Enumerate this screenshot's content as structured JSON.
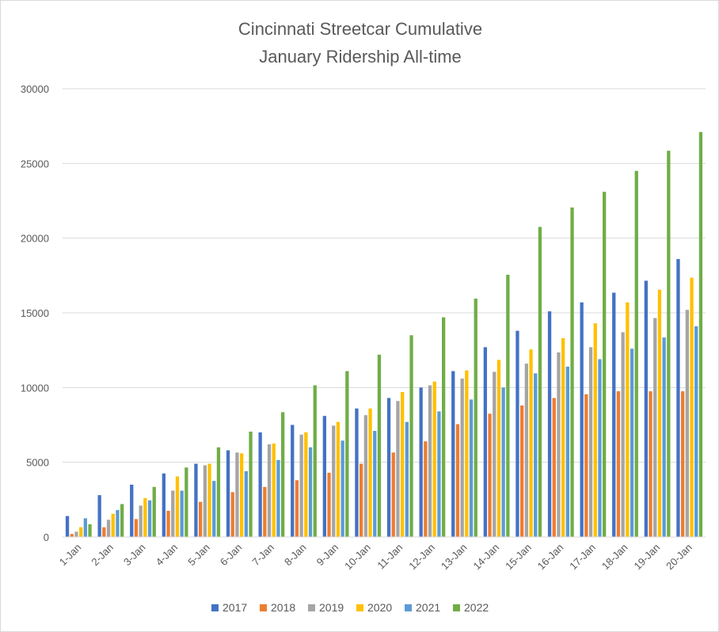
{
  "chart_data": {
    "type": "bar",
    "title": "Cincinnati Streetcar Cumulative January Ridership All-time",
    "title_lines": [
      "Cincinnati Streetcar Cumulative",
      "January Ridership All-time"
    ],
    "xlabel": "",
    "ylabel": "",
    "ylim": [
      0,
      30000
    ],
    "yticks": [
      0,
      5000,
      10000,
      15000,
      20000,
      25000,
      30000
    ],
    "grid": true,
    "legend_position": "bottom",
    "categories": [
      "1-Jan",
      "2-Jan",
      "3-Jan",
      "4-Jan",
      "5-Jan",
      "6-Jan",
      "7-Jan",
      "8-Jan",
      "9-Jan",
      "10-Jan",
      "11-Jan",
      "12-Jan",
      "13-Jan",
      "14-Jan",
      "15-Jan",
      "16-Jan",
      "17-Jan",
      "18-Jan",
      "19-Jan",
      "20-Jan"
    ],
    "series": [
      {
        "name": "2017",
        "color": "#4472C4",
        "values": [
          1400,
          2800,
          3500,
          4250,
          4900,
          5800,
          7000,
          7500,
          8100,
          8600,
          9300,
          10000,
          11100,
          12700,
          13800,
          15100,
          15700,
          16350,
          17150,
          18600
        ]
      },
      {
        "name": "2018",
        "color": "#ED7D31",
        "values": [
          200,
          650,
          1200,
          1750,
          2350,
          3000,
          3350,
          3800,
          4300,
          4900,
          5650,
          6400,
          7550,
          8250,
          8800,
          9300,
          9550,
          9750,
          9750,
          9750
        ]
      },
      {
        "name": "2019",
        "color": "#A5A5A5",
        "values": [
          350,
          1150,
          2100,
          3100,
          4800,
          5650,
          6200,
          6850,
          7450,
          8150,
          9100,
          10150,
          10600,
          11050,
          11600,
          12350,
          12700,
          13700,
          14650,
          15200
        ]
      },
      {
        "name": "2020",
        "color": "#FFC000",
        "values": [
          650,
          1550,
          2600,
          4050,
          4900,
          5600,
          6250,
          7000,
          7700,
          8600,
          9700,
          10400,
          11150,
          11850,
          12550,
          13300,
          14300,
          15700,
          16550,
          17350
        ]
      },
      {
        "name": "2021",
        "color": "#5B9BD5",
        "values": [
          1250,
          1800,
          2450,
          3100,
          3750,
          4400,
          5150,
          6000,
          6450,
          7100,
          7700,
          8400,
          9200,
          10000,
          10950,
          11400,
          11900,
          12600,
          13350,
          14100
        ]
      },
      {
        "name": "2022",
        "color": "#70AD47",
        "values": [
          850,
          2200,
          3350,
          4650,
          6000,
          7050,
          8350,
          10150,
          11100,
          12200,
          13500,
          14700,
          15950,
          17550,
          20750,
          22050,
          23100,
          24500,
          25850,
          27100
        ]
      }
    ]
  },
  "colors": {
    "text": "#595959",
    "gridline": "#d9d9d9",
    "border": "#d9d9d9"
  }
}
